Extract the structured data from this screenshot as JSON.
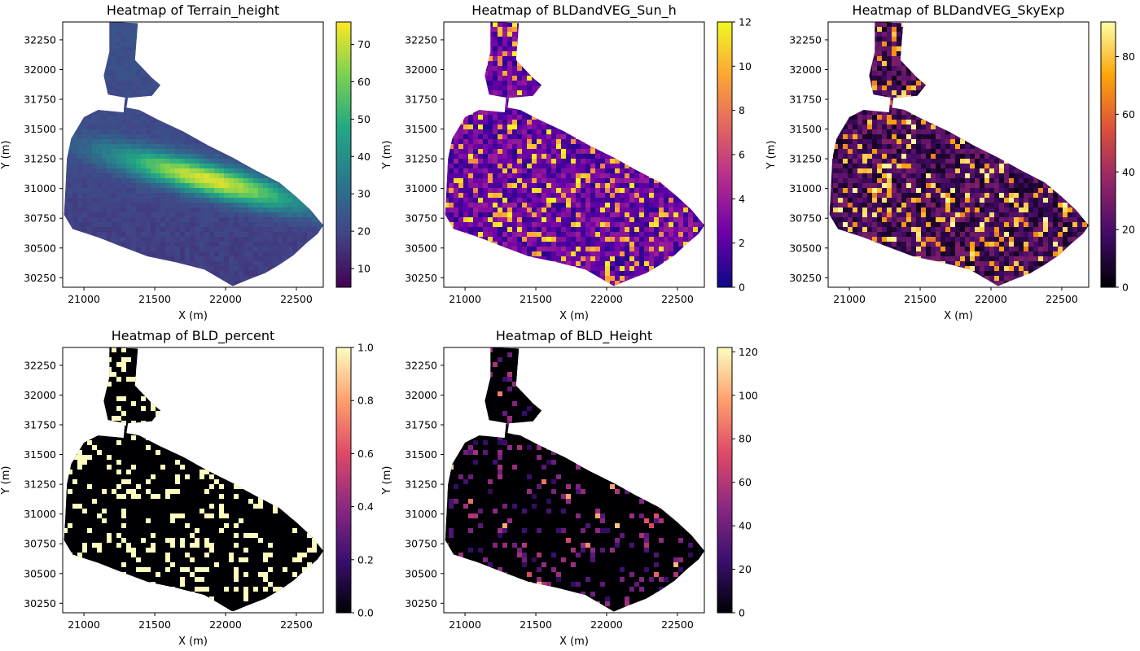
{
  "chart_data": [
    {
      "type": "heatmap",
      "title": "Heatmap of Terrain_height",
      "xlabel": "X (m)",
      "ylabel": "Y (m)",
      "xlim": [
        20850,
        22690
      ],
      "ylim": [
        30170,
        32400
      ],
      "xticks": [
        "21000",
        "21500",
        "22000",
        "22500"
      ],
      "yticks": [
        "30250",
        "30500",
        "30750",
        "31000",
        "31250",
        "31500",
        "31750",
        "32000",
        "32250"
      ],
      "colormap": "viridis",
      "colorbar": {
        "min": 5,
        "max": 76,
        "ticks": [
          "10",
          "20",
          "30",
          "40",
          "50",
          "60",
          "70"
        ]
      }
    },
    {
      "type": "heatmap",
      "title": "Heatmap of BLDandVEG_Sun_h",
      "xlabel": "X (m)",
      "ylabel": "Y (m)",
      "xlim": [
        20850,
        22690
      ],
      "ylim": [
        30170,
        32400
      ],
      "xticks": [
        "21000",
        "21500",
        "22000",
        "22500"
      ],
      "yticks": [
        "30250",
        "30500",
        "30750",
        "31000",
        "31250",
        "31500",
        "31750",
        "32000",
        "32250"
      ],
      "colormap": "plasma",
      "colorbar": {
        "min": 0,
        "max": 12,
        "ticks": [
          "0",
          "2",
          "4",
          "6",
          "8",
          "10",
          "12"
        ]
      }
    },
    {
      "type": "heatmap",
      "title": "Heatmap of BLDandVEG_SkyExp",
      "xlabel": "X (m)",
      "ylabel": "Y (m)",
      "xlim": [
        20850,
        22690
      ],
      "ylim": [
        30170,
        32400
      ],
      "xticks": [
        "21000",
        "21500",
        "22000",
        "22500"
      ],
      "yticks": [
        "30250",
        "30500",
        "30750",
        "31000",
        "31250",
        "31500",
        "31750",
        "32000",
        "32250"
      ],
      "colormap": "inferno",
      "colorbar": {
        "min": 0,
        "max": 92,
        "ticks": [
          "0",
          "20",
          "40",
          "60",
          "80"
        ]
      }
    },
    {
      "type": "heatmap",
      "title": "Heatmap of BLD_percent",
      "xlabel": "X (m)",
      "ylabel": "Y (m)",
      "xlim": [
        20850,
        22690
      ],
      "ylim": [
        30170,
        32400
      ],
      "xticks": [
        "21000",
        "21500",
        "22000",
        "22500"
      ],
      "yticks": [
        "30250",
        "30500",
        "30750",
        "31000",
        "31250",
        "31500",
        "31750",
        "32000",
        "32250"
      ],
      "colormap": "magma",
      "colorbar": {
        "min": 0,
        "max": 1,
        "ticks": [
          "0.0",
          "0.2",
          "0.4",
          "0.6",
          "0.8",
          "1.0"
        ]
      }
    },
    {
      "type": "heatmap",
      "title": "Heatmap of BLD_Height",
      "xlabel": "X (m)",
      "ylabel": "Y (m)",
      "xlim": [
        20850,
        22690
      ],
      "ylim": [
        30170,
        32400
      ],
      "xticks": [
        "21000",
        "21500",
        "22000",
        "22500"
      ],
      "yticks": [
        "30250",
        "30500",
        "30750",
        "31000",
        "31250",
        "31500",
        "31750",
        "32000",
        "32250"
      ],
      "colormap": "magma",
      "colorbar": {
        "min": 0,
        "max": 122,
        "ticks": [
          "0",
          "20",
          "40",
          "60",
          "80",
          "100",
          "120"
        ]
      }
    }
  ]
}
